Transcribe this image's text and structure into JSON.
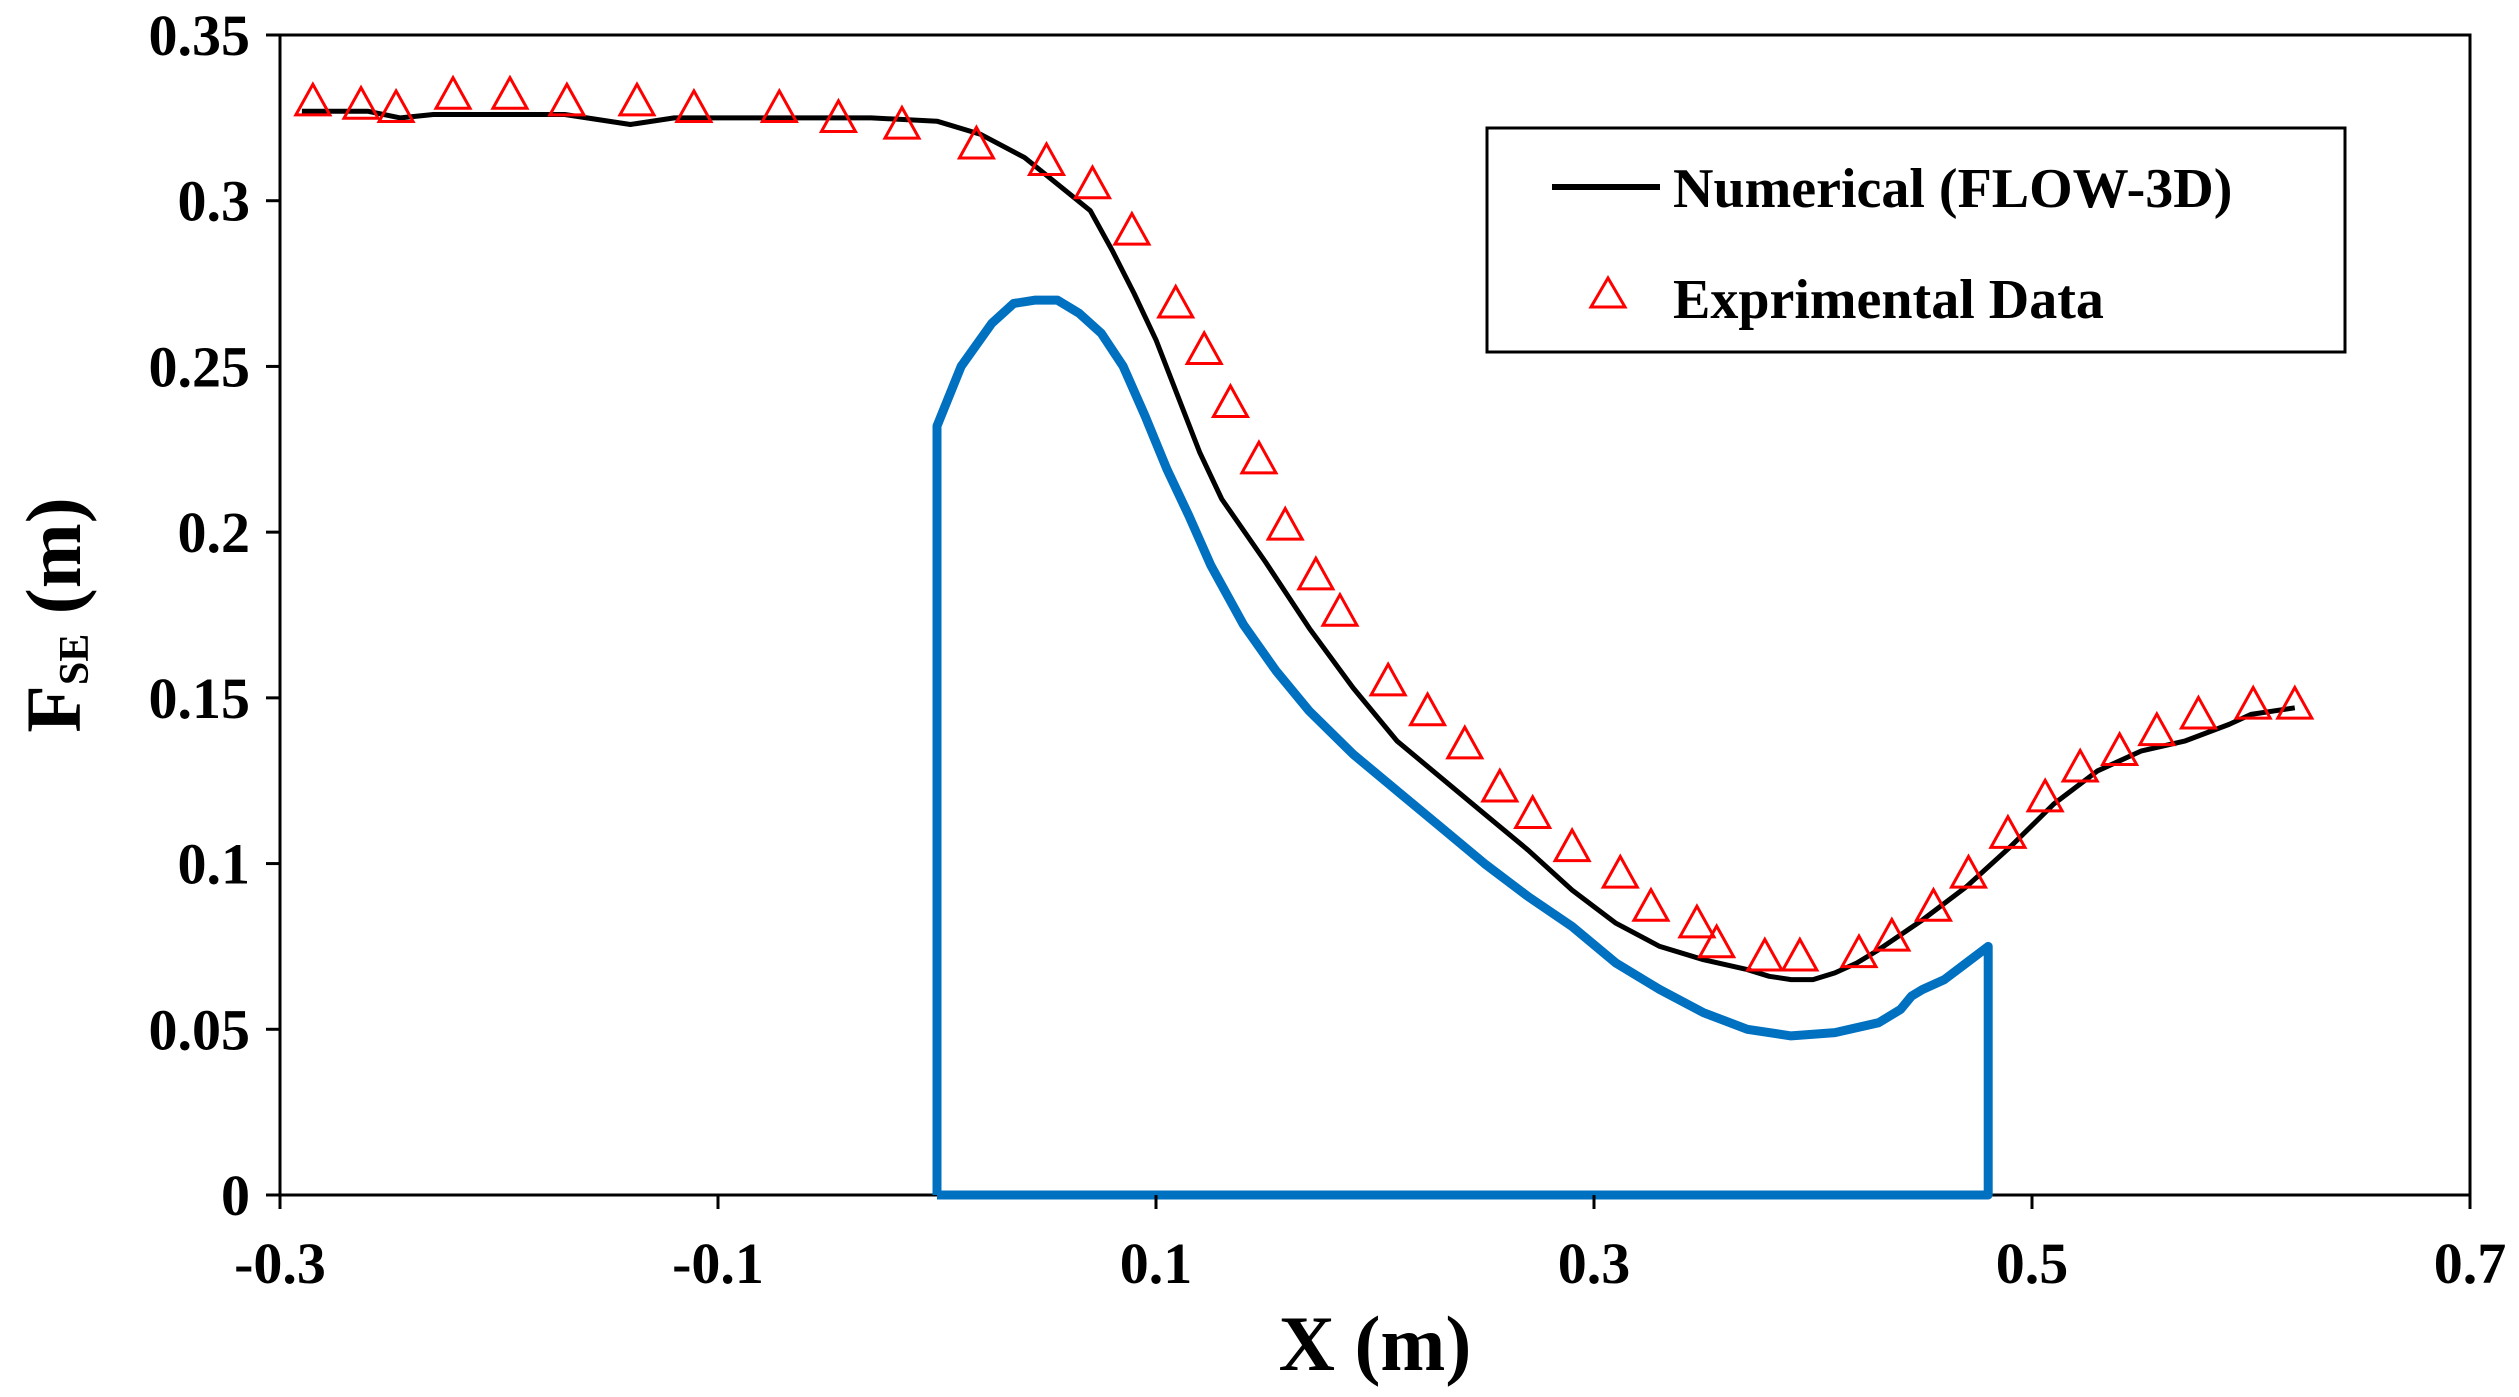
{
  "chart_data": {
    "type": "line",
    "title": "",
    "xlabel": "X (m)",
    "ylabel": {
      "main": "F",
      "subscript": "SE",
      "unit": " (m)"
    },
    "xlim": [
      -0.3,
      0.7
    ],
    "ylim": [
      0,
      0.35
    ],
    "x_ticks": [
      "-0.3",
      "-0.1",
      "0.1",
      "0.3",
      "0.5",
      "0.7"
    ],
    "y_ticks": [
      "0",
      "0.05",
      "0.1",
      "0.15",
      "0.2",
      "0.25",
      "0.3",
      "0.35"
    ],
    "grid": false,
    "legend_position": "top-right",
    "series": [
      {
        "name": "Numerical (FLOW-3D)",
        "kind": "line",
        "color": "#000000",
        "x": [
          -0.29,
          -0.26,
          -0.245,
          -0.23,
          -0.2,
          -0.17,
          -0.14,
          -0.12,
          -0.1,
          -0.06,
          -0.03,
          0.0,
          0.02,
          0.04,
          0.055,
          0.07,
          0.08,
          0.09,
          0.1,
          0.11,
          0.12,
          0.13,
          0.15,
          0.17,
          0.19,
          0.21,
          0.23,
          0.25,
          0.27,
          0.29,
          0.31,
          0.33,
          0.35,
          0.37,
          0.38,
          0.39,
          0.4,
          0.41,
          0.42,
          0.43,
          0.45,
          0.47,
          0.49,
          0.51,
          0.53,
          0.55,
          0.57,
          0.59,
          0.6,
          0.62
        ],
        "y": [
          0.327,
          0.327,
          0.325,
          0.326,
          0.326,
          0.326,
          0.323,
          0.325,
          0.325,
          0.325,
          0.325,
          0.324,
          0.32,
          0.313,
          0.305,
          0.297,
          0.285,
          0.272,
          0.258,
          0.241,
          0.224,
          0.21,
          0.191,
          0.171,
          0.153,
          0.137,
          0.126,
          0.115,
          0.104,
          0.092,
          0.082,
          0.075,
          0.071,
          0.068,
          0.066,
          0.065,
          0.065,
          0.067,
          0.07,
          0.074,
          0.083,
          0.093,
          0.105,
          0.118,
          0.128,
          0.134,
          0.137,
          0.142,
          0.145,
          0.147
        ]
      },
      {
        "name": "Exprimental Data",
        "kind": "scatter",
        "marker": "triangle",
        "color": "#ff0000",
        "x": [
          -0.285,
          -0.263,
          -0.247,
          -0.221,
          -0.195,
          -0.169,
          -0.137,
          -0.111,
          -0.072,
          -0.045,
          -0.016,
          0.018,
          0.05,
          0.071,
          0.089,
          0.109,
          0.122,
          0.134,
          0.147,
          0.159,
          0.173,
          0.184,
          0.206,
          0.224,
          0.241,
          0.257,
          0.272,
          0.29,
          0.312,
          0.326,
          0.347,
          0.356,
          0.378,
          0.394,
          0.421,
          0.436,
          0.455,
          0.471,
          0.489,
          0.506,
          0.522,
          0.54,
          0.557,
          0.576,
          0.601,
          0.62
        ],
        "y": [
          0.33,
          0.329,
          0.328,
          0.332,
          0.332,
          0.33,
          0.33,
          0.328,
          0.328,
          0.325,
          0.323,
          0.317,
          0.312,
          0.305,
          0.291,
          0.269,
          0.255,
          0.239,
          0.222,
          0.202,
          0.187,
          0.176,
          0.155,
          0.146,
          0.136,
          0.123,
          0.115,
          0.105,
          0.097,
          0.087,
          0.082,
          0.076,
          0.072,
          0.072,
          0.073,
          0.078,
          0.087,
          0.097,
          0.109,
          0.12,
          0.129,
          0.134,
          0.14,
          0.145,
          0.148,
          0.148
        ]
      },
      {
        "name": "Bed profile",
        "kind": "line",
        "color": "#0070c0",
        "in_legend": false,
        "x": [
          0.0,
          0.0,
          0.011,
          0.025,
          0.035,
          0.045,
          0.055,
          0.065,
          0.075,
          0.085,
          0.095,
          0.105,
          0.115,
          0.125,
          0.14,
          0.155,
          0.17,
          0.19,
          0.21,
          0.23,
          0.25,
          0.27,
          0.29,
          0.31,
          0.33,
          0.35,
          0.37,
          0.39,
          0.41,
          0.43,
          0.44,
          0.445,
          0.45,
          0.46,
          0.47,
          0.48,
          0.48,
          0.0
        ],
        "y": [
          0.0,
          0.232,
          0.25,
          0.263,
          0.269,
          0.27,
          0.27,
          0.266,
          0.26,
          0.25,
          0.235,
          0.219,
          0.205,
          0.19,
          0.172,
          0.158,
          0.146,
          0.133,
          0.122,
          0.111,
          0.1,
          0.09,
          0.081,
          0.07,
          0.062,
          0.055,
          0.05,
          0.048,
          0.049,
          0.052,
          0.056,
          0.06,
          0.062,
          0.065,
          0.07,
          0.075,
          0.0,
          0.0
        ]
      }
    ]
  }
}
